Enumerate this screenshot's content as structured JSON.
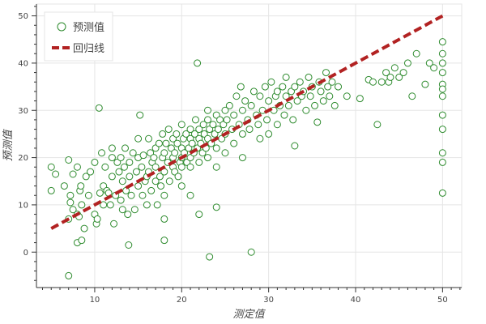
{
  "chart_data": {
    "type": "scatter",
    "xlabel": "测定值",
    "ylabel": "预测值",
    "xlim": [
      3.3,
      52.2
    ],
    "ylim": [
      -7.5,
      52.5
    ],
    "xticks": [
      10,
      20,
      30,
      40,
      50
    ],
    "yticks": [
      0,
      10,
      20,
      30,
      40,
      50
    ],
    "grid": true,
    "legend_position": "top-left",
    "series": [
      {
        "name": "预测值",
        "kind": "scatter",
        "marker": "open-circle",
        "color": "#2e8b2e",
        "points": [
          [
            7,
            -5
          ],
          [
            5,
            18
          ],
          [
            5,
            13
          ],
          [
            5.5,
            16.5
          ],
          [
            6.5,
            14
          ],
          [
            7,
            19.5
          ],
          [
            7.5,
            16.5
          ],
          [
            7.2,
            12
          ],
          [
            8,
            18
          ],
          [
            7,
            7
          ],
          [
            7.5,
            9
          ],
          [
            7.2,
            10.5
          ],
          [
            8,
            8
          ],
          [
            8.3,
            13
          ],
          [
            8.4,
            14
          ],
          [
            8.5,
            10
          ],
          [
            8,
            2
          ],
          [
            8.5,
            2.5
          ],
          [
            8.8,
            5
          ],
          [
            8.2,
            7.5
          ],
          [
            9,
            16
          ],
          [
            9.5,
            17
          ],
          [
            9.3,
            12
          ],
          [
            10,
            19
          ],
          [
            10,
            8
          ],
          [
            10.2,
            6
          ],
          [
            10.3,
            7
          ],
          [
            10.5,
            30.5
          ],
          [
            10.6,
            12.5
          ],
          [
            10.8,
            21
          ],
          [
            11,
            10
          ],
          [
            11,
            14
          ],
          [
            11.2,
            18
          ],
          [
            11.4,
            13
          ],
          [
            11.6,
            12.5
          ],
          [
            11.8,
            10
          ],
          [
            12,
            16
          ],
          [
            12,
            20
          ],
          [
            12,
            22
          ],
          [
            12.2,
            6
          ],
          [
            12.4,
            12
          ],
          [
            12.6,
            19
          ],
          [
            12.8,
            17
          ],
          [
            13,
            20
          ],
          [
            13,
            11
          ],
          [
            13.2,
            9
          ],
          [
            13.2,
            15
          ],
          [
            13.4,
            18
          ],
          [
            13.5,
            22
          ],
          [
            13.6,
            13
          ],
          [
            13.8,
            8
          ],
          [
            13.9,
            1.5
          ],
          [
            14,
            16
          ],
          [
            14,
            19
          ],
          [
            14.2,
            12
          ],
          [
            14.4,
            21
          ],
          [
            14.6,
            9
          ],
          [
            14.8,
            17
          ],
          [
            15,
            24
          ],
          [
            15,
            20
          ],
          [
            15,
            14
          ],
          [
            15.2,
            29
          ],
          [
            15.4,
            18
          ],
          [
            15.5,
            12
          ],
          [
            15.6,
            20.5
          ],
          [
            15.8,
            15
          ],
          [
            16,
            16
          ],
          [
            16,
            10
          ],
          [
            16.2,
            24
          ],
          [
            16.2,
            17
          ],
          [
            16.4,
            21
          ],
          [
            16.5,
            13
          ],
          [
            16.6,
            19
          ],
          [
            16.8,
            20
          ],
          [
            17,
            22
          ],
          [
            17,
            15
          ],
          [
            17,
            18
          ],
          [
            17.2,
            10
          ],
          [
            17.4,
            23
          ],
          [
            17.5,
            16
          ],
          [
            17.6,
            14
          ],
          [
            17.8,
            20
          ],
          [
            17.8,
            25
          ],
          [
            18,
            17
          ],
          [
            18,
            21
          ],
          [
            18,
            12
          ],
          [
            18,
            2.5
          ],
          [
            18,
            7
          ],
          [
            18.2,
            23
          ],
          [
            18.4,
            19
          ],
          [
            18.5,
            26
          ],
          [
            18.6,
            15
          ],
          [
            18.8,
            22
          ],
          [
            19,
            18
          ],
          [
            19,
            24
          ],
          [
            19,
            20
          ],
          [
            19.2,
            21
          ],
          [
            19.2,
            17
          ],
          [
            19.4,
            25
          ],
          [
            19.5,
            23
          ],
          [
            19.6,
            16
          ],
          [
            19.8,
            19
          ],
          [
            20,
            22
          ],
          [
            20,
            20
          ],
          [
            20,
            18
          ],
          [
            20,
            27
          ],
          [
            20,
            14
          ],
          [
            20.2,
            24
          ],
          [
            20.3,
            21
          ],
          [
            20.5,
            25
          ],
          [
            20.6,
            19
          ],
          [
            20.8,
            22
          ],
          [
            21,
            24
          ],
          [
            21,
            20
          ],
          [
            21,
            26
          ],
          [
            21,
            18
          ],
          [
            21,
            12
          ],
          [
            21.2,
            23
          ],
          [
            21.4,
            21
          ],
          [
            21.5,
            25
          ],
          [
            21.6,
            28
          ],
          [
            21.8,
            22
          ],
          [
            21.8,
            40
          ],
          [
            22,
            24
          ],
          [
            22,
            19
          ],
          [
            22,
            8
          ],
          [
            22,
            26
          ],
          [
            22.2,
            23
          ],
          [
            22.4,
            21
          ],
          [
            22.5,
            27
          ],
          [
            22.6,
            25
          ],
          [
            22.8,
            22
          ],
          [
            23,
            28
          ],
          [
            23,
            24
          ],
          [
            23,
            20
          ],
          [
            23,
            30
          ],
          [
            23.2,
            -1
          ],
          [
            23.2,
            26
          ],
          [
            23.4,
            23
          ],
          [
            23.6,
            27
          ],
          [
            23.8,
            25
          ],
          [
            24,
            29
          ],
          [
            24,
            22
          ],
          [
            24,
            18
          ],
          [
            24,
            9.5
          ],
          [
            24.2,
            26
          ],
          [
            24.4,
            28
          ],
          [
            24.6,
            24
          ],
          [
            24.8,
            27
          ],
          [
            25,
            30
          ],
          [
            25,
            25
          ],
          [
            25,
            21
          ],
          [
            25.2,
            28
          ],
          [
            25.5,
            31
          ],
          [
            25.8,
            26
          ],
          [
            26,
            29
          ],
          [
            26,
            23
          ],
          [
            26.3,
            33
          ],
          [
            26.6,
            27
          ],
          [
            26.8,
            35
          ],
          [
            27,
            30
          ],
          [
            27,
            20
          ],
          [
            27,
            25
          ],
          [
            27.3,
            32
          ],
          [
            27.6,
            28
          ],
          [
            27.8,
            26
          ],
          [
            28,
            31
          ],
          [
            28,
            0
          ],
          [
            28.3,
            34
          ],
          [
            28.6,
            29
          ],
          [
            28.8,
            27
          ],
          [
            29,
            33
          ],
          [
            29,
            24
          ],
          [
            29.3,
            30
          ],
          [
            29.6,
            35
          ],
          [
            29.8,
            28
          ],
          [
            30,
            32
          ],
          [
            30,
            25
          ],
          [
            30.3,
            36
          ],
          [
            30.6,
            30
          ],
          [
            30.8,
            33
          ],
          [
            31,
            34
          ],
          [
            31,
            27
          ],
          [
            31.3,
            31
          ],
          [
            31.6,
            35
          ],
          [
            31.8,
            29
          ],
          [
            32,
            33
          ],
          [
            32,
            37
          ],
          [
            32.3,
            31
          ],
          [
            32.6,
            34
          ],
          [
            32.8,
            28
          ],
          [
            33,
            35
          ],
          [
            33,
            22.5
          ],
          [
            33.3,
            32
          ],
          [
            33.6,
            36
          ],
          [
            33.8,
            33
          ],
          [
            34,
            34
          ],
          [
            34.3,
            30
          ],
          [
            34.6,
            37
          ],
          [
            34.8,
            33
          ],
          [
            35,
            35
          ],
          [
            35.3,
            31
          ],
          [
            35.6,
            27.5
          ],
          [
            35.8,
            36
          ],
          [
            36,
            34
          ],
          [
            36.3,
            32
          ],
          [
            36.6,
            38
          ],
          [
            36.8,
            35
          ],
          [
            37,
            33
          ],
          [
            37.3,
            36
          ],
          [
            37.6,
            31
          ],
          [
            38,
            35
          ],
          [
            39,
            33
          ],
          [
            40.5,
            32.5
          ],
          [
            41.5,
            36.5
          ],
          [
            42,
            36
          ],
          [
            42.5,
            27
          ],
          [
            43,
            36
          ],
          [
            43.5,
            38
          ],
          [
            43.8,
            36
          ],
          [
            44,
            37
          ],
          [
            44.5,
            39
          ],
          [
            45,
            37
          ],
          [
            45.5,
            38
          ],
          [
            46,
            40
          ],
          [
            46.5,
            33
          ],
          [
            47,
            42
          ],
          [
            48,
            35.5
          ],
          [
            48.5,
            40
          ],
          [
            49,
            39
          ],
          [
            50,
            44.5
          ],
          [
            50,
            42
          ],
          [
            50,
            40
          ],
          [
            50,
            38
          ],
          [
            50,
            35.5
          ],
          [
            50,
            34.5
          ],
          [
            50,
            33
          ],
          [
            50,
            29
          ],
          [
            50,
            26
          ],
          [
            50,
            21
          ],
          [
            50,
            19
          ],
          [
            50,
            12.5
          ]
        ]
      },
      {
        "name": "回归线",
        "kind": "line",
        "style": "dashed",
        "color": "#b22222",
        "points": [
          [
            5,
            5
          ],
          [
            50,
            50
          ]
        ]
      }
    ]
  }
}
